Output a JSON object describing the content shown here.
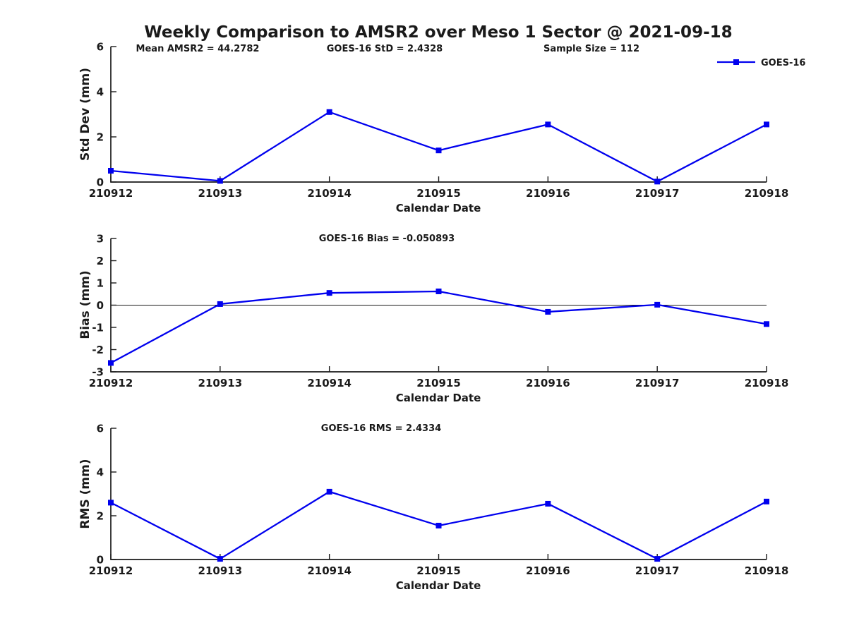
{
  "page": {
    "title": "Weekly Comparison to AMSR2 over Meso 1 Sector @ 2021-09-18"
  },
  "header_stats": [
    {
      "text": "Mean AMSR2 = 44.2782"
    },
    {
      "text": "GOES-16 StD = 2.4328"
    },
    {
      "text": "Sample Size = 112"
    }
  ],
  "legend": {
    "label": "GOES-16",
    "color": "#0000EE",
    "position": "top-right"
  },
  "chart_data": [
    {
      "type": "line",
      "title": "",
      "xlabel": "Calendar Date",
      "ylabel": "Std Dev (mm)",
      "categories": [
        "210912",
        "210913",
        "210914",
        "210915",
        "210916",
        "210917",
        "210918"
      ],
      "series": [
        {
          "name": "GOES-16",
          "color": "#0000EE",
          "marker": "square",
          "values": [
            0.5,
            0.05,
            3.1,
            1.4,
            2.55,
            0.02,
            2.55
          ]
        }
      ],
      "ylim": [
        0,
        6
      ],
      "yticks": [
        0,
        2,
        4,
        6
      ],
      "grid": false,
      "zero_line": false
    },
    {
      "type": "line",
      "title": "GOES-16 Bias  = -0.050893",
      "xlabel": "Calendar Date",
      "ylabel": "Bias (mm)",
      "categories": [
        "210912",
        "210913",
        "210914",
        "210915",
        "210916",
        "210917",
        "210918"
      ],
      "series": [
        {
          "name": "GOES-16",
          "color": "#0000EE",
          "marker": "square",
          "values": [
            -2.6,
            0.05,
            0.55,
            0.62,
            -0.3,
            0.02,
            -0.85
          ]
        }
      ],
      "ylim": [
        -3,
        3
      ],
      "yticks": [
        -3,
        -2,
        -1,
        0,
        1,
        2,
        3
      ],
      "grid": false,
      "zero_line": true
    },
    {
      "type": "line",
      "title": "GOES-16 RMS = 2.4334",
      "xlabel": "Calendar Date",
      "ylabel": "RMS (mm)",
      "categories": [
        "210912",
        "210913",
        "210914",
        "210915",
        "210916",
        "210917",
        "210918"
      ],
      "series": [
        {
          "name": "GOES-16",
          "color": "#0000EE",
          "marker": "square",
          "values": [
            2.6,
            0.03,
            3.1,
            1.55,
            2.55,
            0.03,
            2.65
          ]
        }
      ],
      "ylim": [
        0,
        6
      ],
      "yticks": [
        0,
        2,
        4,
        6
      ],
      "grid": false,
      "zero_line": false
    }
  ]
}
